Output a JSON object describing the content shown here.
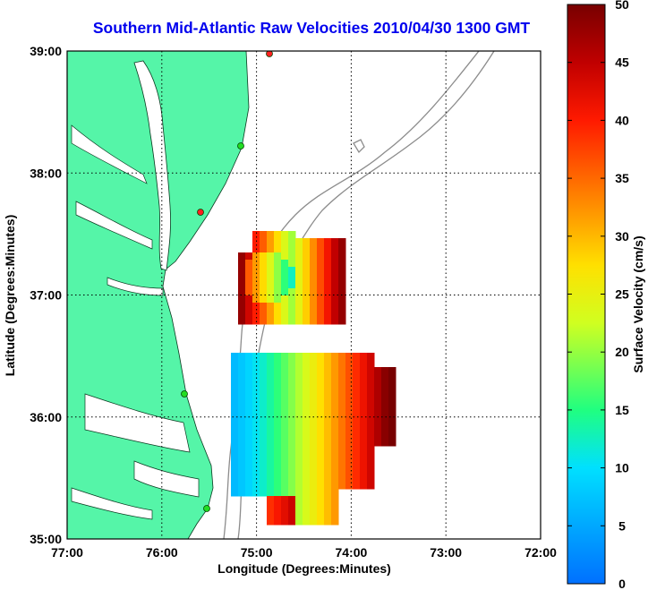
{
  "title": "Southern Mid-Atlantic Raw Velocities 2010/04/30 1300 GMT",
  "x_axis": {
    "label": "Longitude (Degrees:Minutes)",
    "ticks": [
      "77:00",
      "76:00",
      "75:00",
      "74:00",
      "73:00",
      "72:00"
    ]
  },
  "y_axis": {
    "label": "Latitude (Degrees:Minutes)",
    "ticks": [
      "39:00",
      "38:00",
      "37:00",
      "36:00",
      "35:00"
    ]
  },
  "colorbar": {
    "label": "Surface Velocity (cm/s)",
    "min": 0,
    "max": 50,
    "ticks": [
      "0",
      "5",
      "10",
      "15",
      "20",
      "25",
      "30",
      "35",
      "40",
      "45",
      "50"
    ]
  },
  "map": {
    "lon_range": [
      -77,
      -72
    ],
    "lat_range": [
      35,
      39
    ],
    "grid": true,
    "land_color": "#55f5a8",
    "water_color": "#ffffff",
    "bathymetry_color": "#8c8c8c",
    "station_colors": [
      "#ff2020",
      "#22dd22"
    ]
  }
}
